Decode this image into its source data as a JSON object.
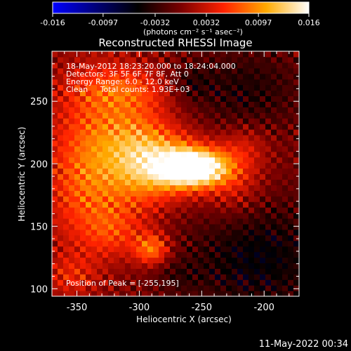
{
  "chart_data": {
    "type": "heatmap",
    "title": "Reconstructed RHESSI Image",
    "xlabel": "Heliocentric X (arcsec)",
    "ylabel": "Heliocentric Y (arcsec)",
    "xlim": [
      -370,
      -172
    ],
    "ylim": [
      94,
      290
    ],
    "x_ticks": [
      -350,
      -300,
      -250,
      -200
    ],
    "y_ticks": [
      100,
      150,
      200,
      250
    ],
    "x_tick_labels": [
      "-350",
      "-300",
      "-250",
      "-200"
    ],
    "y_tick_labels": [
      "100",
      "150",
      "200",
      "250"
    ],
    "colorbar": {
      "range": [
        -0.016,
        0.016
      ],
      "tick_values": [
        -0.016,
        -0.0097,
        -0.0032,
        0.0032,
        0.0097,
        0.016
      ],
      "tick_labels": [
        "-0.016",
        "-0.0097",
        "-0.0032",
        "0.0032",
        "0.0097",
        "0.016"
      ],
      "units": "(photons cm⁻² s⁻¹ asec⁻²)",
      "stops": [
        "#0000ff",
        "#00007a",
        "#000000",
        "#7a0000",
        "#ff2200",
        "#ffaa00",
        "#ffffff"
      ]
    },
    "annotations": [
      "18-May-2012 18:23:20.000 to 18:24:04.000",
      "Detectors: 3F 5F 6F 7F 8F, Att 0",
      "Energy Range: 6.0 - 12.0 keV",
      "Clean     Total counts: 1.93E+03"
    ],
    "peak_label": "Position of Peak = [-255,195]",
    "peak": {
      "x": -255,
      "y": 195,
      "value": 0.016
    },
    "sources": [
      {
        "x": -255,
        "y": 197,
        "sx": 18,
        "sy": 10,
        "amp": 0.0175
      },
      {
        "x": -275,
        "y": 200,
        "sx": 22,
        "sy": 18,
        "amp": 0.0085
      },
      {
        "x": -300,
        "y": 205,
        "sx": 20,
        "sy": 28,
        "amp": 0.0065
      },
      {
        "x": -330,
        "y": 225,
        "sx": 28,
        "sy": 40,
        "amp": 0.006
      },
      {
        "x": -345,
        "y": 175,
        "sx": 22,
        "sy": 35,
        "amp": 0.005
      },
      {
        "x": -290,
        "y": 132,
        "sx": 10,
        "sy": 9,
        "amp": 0.0085
      },
      {
        "x": -320,
        "y": 145,
        "sx": 16,
        "sy": 14,
        "amp": 0.004
      },
      {
        "x": -355,
        "y": 110,
        "sx": 15,
        "sy": 12,
        "amp": 0.004
      },
      {
        "x": -310,
        "y": 260,
        "sx": 30,
        "sy": 12,
        "amp": 0.004
      },
      {
        "x": -225,
        "y": 185,
        "sx": 18,
        "sy": 20,
        "amp": 0.0045
      },
      {
        "x": -215,
        "y": 215,
        "sx": 14,
        "sy": 12,
        "amp": 0.003
      },
      {
        "x": -205,
        "y": 125,
        "sx": 42,
        "sy": 35,
        "amp": -0.0055
      },
      {
        "x": -215,
        "y": 260,
        "sx": 35,
        "sy": 25,
        "amp": -0.004
      },
      {
        "x": -260,
        "y": 265,
        "sx": 12,
        "sy": 10,
        "amp": -0.003
      },
      {
        "x": -270,
        "y": 110,
        "sx": 14,
        "sy": 10,
        "amp": -0.002
      }
    ]
  },
  "footer_timestamp": "11-May-2022 00:34"
}
